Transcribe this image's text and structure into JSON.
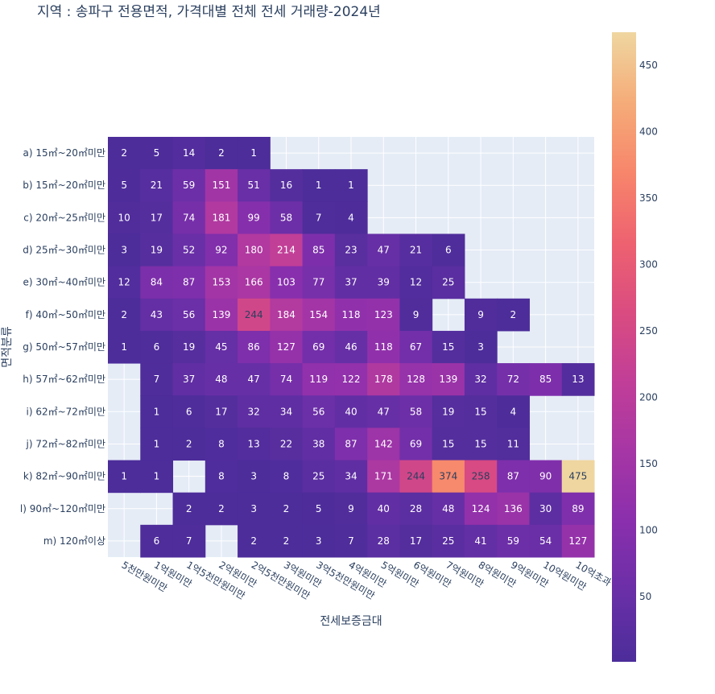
{
  "chart_data": {
    "type": "heatmap",
    "title": "지역 : 송파구 전용면적, 가격대별 전체 전세 거래량-2024년",
    "xlabel": "전세보증금대",
    "ylabel": "면적분류",
    "x_categories": [
      "5천만원미만",
      "1억원미만",
      "1억5천만원미만",
      "2억원미만",
      "2억5천만원미만",
      "3억원미만",
      "3억5천만원미만",
      "4억원미만",
      "5억원미만",
      "6억원미만",
      "7억원미만",
      "8억원미만",
      "9억원미만",
      "10억원미만",
      "10억초과"
    ],
    "y_categories": [
      "a) 15㎡~20㎡미만",
      "b) 15㎡~20㎡미만",
      "c) 20㎡~25㎡미만",
      "d) 25㎡~30㎡미만",
      "e) 30㎡~40㎡미만",
      "f) 40㎡~50㎡미만",
      "g) 50㎡~57㎡미만",
      "h) 57㎡~62㎡미만",
      "i) 62㎡~72㎡미만",
      "j) 72㎡~82㎡미만",
      "k) 82㎡~90㎡미만",
      "l) 90㎡~120㎡미만",
      "m) 120㎡이상"
    ],
    "z": [
      [
        2,
        5,
        14,
        2,
        1,
        null,
        null,
        null,
        null,
        null,
        null,
        null,
        null,
        null,
        null
      ],
      [
        5,
        21,
        59,
        151,
        51,
        16,
        1,
        1,
        null,
        null,
        null,
        null,
        null,
        null,
        null
      ],
      [
        10,
        17,
        74,
        181,
        99,
        58,
        7,
        4,
        null,
        null,
        null,
        null,
        null,
        null,
        null
      ],
      [
        3,
        19,
        52,
        92,
        180,
        214,
        85,
        23,
        47,
        21,
        6,
        null,
        null,
        null,
        null
      ],
      [
        12,
        84,
        87,
        153,
        166,
        103,
        77,
        37,
        39,
        12,
        25,
        null,
        null,
        null,
        null
      ],
      [
        2,
        43,
        56,
        139,
        244,
        184,
        154,
        118,
        123,
        9,
        null,
        9,
        2,
        null,
        null
      ],
      [
        1,
        6,
        19,
        45,
        86,
        127,
        69,
        46,
        118,
        67,
        15,
        3,
        null,
        null,
        null
      ],
      [
        null,
        7,
        37,
        48,
        47,
        74,
        119,
        122,
        178,
        128,
        139,
        32,
        72,
        85,
        13
      ],
      [
        null,
        1,
        6,
        17,
        32,
        34,
        56,
        40,
        47,
        58,
        19,
        15,
        4,
        null,
        null
      ],
      [
        null,
        1,
        2,
        8,
        13,
        22,
        38,
        87,
        142,
        69,
        15,
        15,
        11,
        null,
        null
      ],
      [
        1,
        1,
        null,
        8,
        3,
        8,
        25,
        34,
        171,
        244,
        374,
        258,
        87,
        90,
        475
      ],
      [
        null,
        null,
        2,
        2,
        3,
        2,
        5,
        9,
        40,
        28,
        48,
        124,
        136,
        30,
        89
      ],
      [
        null,
        6,
        7,
        null,
        2,
        2,
        3,
        7,
        28,
        17,
        25,
        41,
        59,
        54,
        127
      ]
    ],
    "zmin": 1,
    "zmax": 475,
    "colorbar_ticks": [
      50,
      100,
      150,
      200,
      250,
      300,
      350,
      400,
      450
    ],
    "colorscale": [
      "#0d0887",
      "#46039f",
      "#7201a8",
      "#9c179e",
      "#bd3786",
      "#d8576b",
      "#ed7953",
      "#fb9f3a",
      "#fdca26",
      "#f0f921"
    ],
    "cell_colorscale": [
      "#4c2d9a",
      "#6a2fa7",
      "#8a2fad",
      "#a636a5",
      "#c13e98",
      "#da4c80",
      "#ee6270",
      "#f7866b",
      "#f5ac79",
      "#efd6a0"
    ],
    "plot_bg": "#e5ecf6",
    "grid": true
  }
}
